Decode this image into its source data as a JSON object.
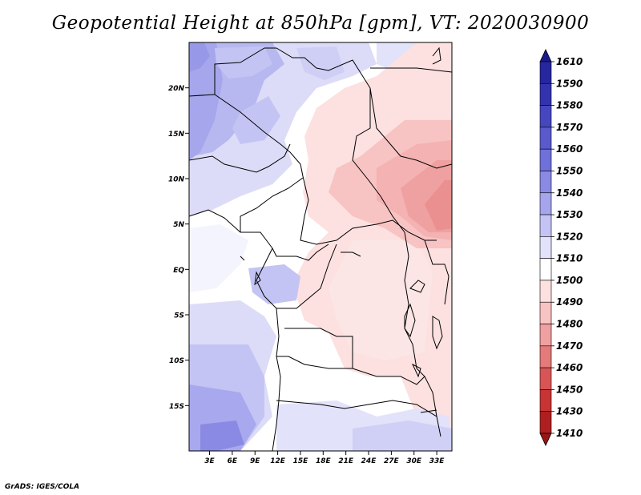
{
  "title": "Geopotential Height at 850hPa [gpm], VT: 2020030900",
  "credit": "GrADS: IGES/COLA",
  "lat_axis": {
    "labels": [
      "20N",
      "15N",
      "10N",
      "5N",
      "EQ",
      "5S",
      "10S",
      "15S"
    ],
    "values": [
      20,
      15,
      10,
      5,
      0,
      -5,
      -10,
      -15
    ],
    "range": [
      -20,
      25
    ]
  },
  "lon_axis": {
    "labels": [
      "3E",
      "6E",
      "9E",
      "12E",
      "15E",
      "18E",
      "21E",
      "24E",
      "27E",
      "30E",
      "33E"
    ],
    "values": [
      3,
      6,
      9,
      12,
      15,
      18,
      21,
      24,
      27,
      30,
      33
    ],
    "range": [
      0.3,
      35
    ]
  },
  "colorbar": {
    "levels": [
      "1610",
      "1590",
      "1580",
      "1570",
      "1560",
      "1550",
      "1540",
      "1530",
      "1520",
      "1510",
      "1500",
      "1490",
      "1480",
      "1470",
      "1460",
      "1450",
      "1430",
      "1410"
    ],
    "colors": [
      "#1a1a8c",
      "#26269e",
      "#3333b0",
      "#4646bf",
      "#5a5acd",
      "#7070da",
      "#8a8ae4",
      "#a5a5ed",
      "#c4c4f4",
      "#e2e2fa",
      "#ffffff",
      "#fde0e0",
      "#f8c3c3",
      "#efa0a0",
      "#e47a7a",
      "#d95555",
      "#c83333",
      "#b01f1f",
      "#9a1515"
    ]
  }
}
